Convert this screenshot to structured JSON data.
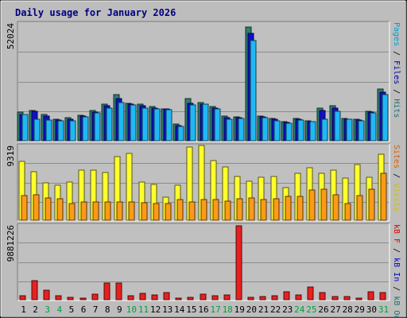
{
  "chart_data": {
    "type": "bar",
    "title": "Daily usage for January 2026",
    "x": [
      "1",
      "2",
      "3",
      "4",
      "5",
      "6",
      "7",
      "8",
      "9",
      "10",
      "11",
      "12",
      "13",
      "14",
      "15",
      "16",
      "17",
      "18",
      "19",
      "20",
      "21",
      "22",
      "23",
      "24",
      "25",
      "26",
      "27",
      "28",
      "29",
      "30",
      "31"
    ],
    "weekend_days": [
      3,
      4,
      10,
      11,
      17,
      18,
      24,
      25,
      31
    ],
    "panels": [
      {
        "name": "requests",
        "max_label": "52024",
        "ymax": 53500,
        "legend": [
          {
            "text": "Pages",
            "color": "#00a0d0"
          },
          {
            "text": " / ",
            "color": "#000000"
          },
          {
            "text": "Files",
            "color": "#0000a0"
          },
          {
            "text": " / ",
            "color": "#000000"
          },
          {
            "text": "Hits",
            "color": "#207070"
          }
        ],
        "series": [
          {
            "name": "Hits",
            "color": "#2f7f6c",
            "values": [
              13000,
              13900,
              12100,
              9800,
              10500,
              11700,
              13800,
              16500,
              21000,
              17000,
              16700,
              15500,
              14600,
              7500,
              19100,
              17300,
              15500,
              11100,
              10900,
              51800,
              11100,
              10300,
              8600,
              10000,
              9000,
              14700,
              15800,
              10200,
              9900,
              13500,
              23500
            ]
          },
          {
            "name": "Files",
            "color": "#1010c8",
            "values": [
              12000,
              13200,
              11200,
              9300,
              9800,
              11100,
              13000,
              15900,
              19300,
              16600,
              16000,
              14800,
              14300,
              6900,
              16900,
              16700,
              14900,
              10600,
              10500,
              48900,
              10700,
              9600,
              8200,
              9600,
              8600,
              13700,
              15000,
              9700,
              9300,
              13000,
              21900
            ]
          },
          {
            "name": "Pages",
            "color": "#20b8f4",
            "values": [
              11900,
              9700,
              9300,
              8900,
              9200,
              11000,
              12500,
              14700,
              17300,
              16400,
              15000,
              14600,
              14200,
              6600,
              16300,
              16500,
              14500,
              9900,
              10100,
              45700,
              10600,
              9200,
              7900,
              9300,
              8500,
              9800,
              13200,
              9600,
              9000,
              12700,
              20900
            ]
          }
        ]
      },
      {
        "name": "visits",
        "max_label": "9319",
        "ymax": 9500,
        "legend": [
          {
            "text": "Sites",
            "color": "#e06000"
          },
          {
            "text": " / ",
            "color": "#000000"
          },
          {
            "text": "Visits",
            "color": "#d0c000"
          }
        ],
        "series": [
          {
            "name": "Visits",
            "color": "#ffff2a",
            "values": [
              7500,
              6200,
              4700,
              4400,
              4900,
              6400,
              6400,
              6100,
              8100,
              8500,
              4900,
              4500,
              2900,
              4400,
              9300,
              9500,
              7600,
              6800,
              5600,
              5000,
              5500,
              5600,
              4100,
              6000,
              6700,
              6000,
              6400,
              5400,
              7100,
              5500,
              8400
            ]
          },
          {
            "name": "Sites",
            "color": "#ff9a18",
            "values": [
              3100,
              3200,
              2800,
              2700,
              2100,
              2300,
              2300,
              2300,
              2300,
              2300,
              2200,
              2100,
              2100,
              2600,
              2300,
              2600,
              2600,
              2400,
              2700,
              2800,
              2600,
              2700,
              3000,
              3000,
              3800,
              3900,
              3200,
              2100,
              3100,
              3900,
              6000
            ]
          }
        ]
      },
      {
        "name": "kbytes",
        "max_label": "9881226",
        "ymax": 10000000,
        "legend": [
          {
            "text": "kB F",
            "color": "#e00000"
          },
          {
            "text": " / ",
            "color": "#000000"
          },
          {
            "text": "kB In",
            "color": "#0000c0"
          },
          {
            "text": " / ",
            "color": "#000000"
          },
          {
            "text": "kB Out",
            "color": "#207070"
          }
        ],
        "series": [
          {
            "name": "kB F",
            "color": "#e82020",
            "values": [
              500000,
              2500000,
              1300000,
              500000,
              300000,
              200000,
              700000,
              2200000,
              2200000,
              500000,
              800000,
              600000,
              1000000,
              200000,
              300000,
              700000,
              500000,
              600000,
              9881226,
              300000,
              400000,
              500000,
              1100000,
              600000,
              1700000,
              1000000,
              400000,
              400000,
              200000,
              1100000,
              1000000
            ]
          }
        ]
      }
    ]
  }
}
